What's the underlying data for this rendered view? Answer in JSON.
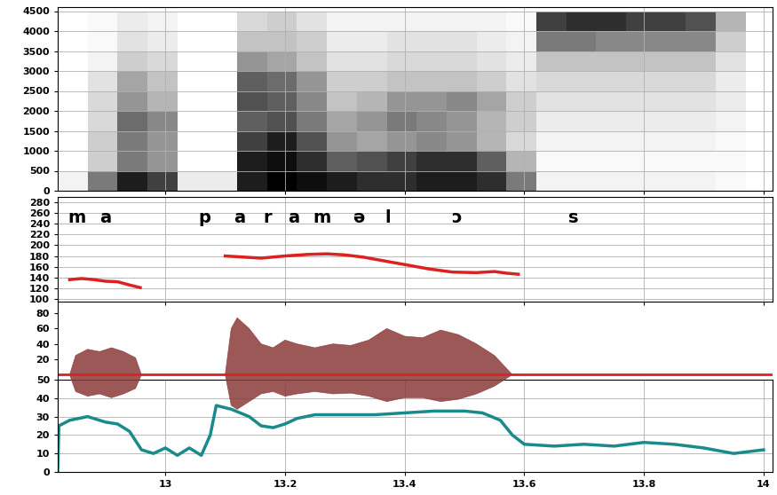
{
  "chart_data": [
    {
      "type": "heatmap",
      "time_edges": [
        12.82,
        12.87,
        12.92,
        12.97,
        13.02,
        13.07,
        13.12,
        13.17,
        13.22,
        13.27,
        13.32,
        13.37,
        13.42,
        13.47,
        13.52,
        13.57,
        13.62,
        13.67,
        13.72,
        13.77,
        13.82,
        13.87,
        13.92,
        13.97,
        14.02
      ],
      "freq_edges": [
        0,
        500,
        1000,
        1500,
        2000,
        2500,
        3000,
        3500,
        4000,
        4500
      ],
      "cells": [
        [
          0.1,
          0.6,
          0.9,
          0.8,
          0.15,
          0.15,
          0.9,
          1,
          0.95,
          0.9,
          0.85,
          0.85,
          0.9,
          0.9,
          0.85,
          0.6,
          0.1,
          0.1,
          0.1,
          0.1,
          0.1,
          0.1,
          0.05,
          0
        ],
        [
          0,
          0.3,
          0.6,
          0.5,
          0,
          0,
          0.9,
          0.95,
          0.85,
          0.7,
          0.75,
          0.8,
          0.85,
          0.85,
          0.7,
          0.4,
          0.05,
          0.05,
          0.05,
          0.05,
          0.05,
          0.05,
          0.05,
          0
        ],
        [
          0,
          0.3,
          0.6,
          0.5,
          0,
          0,
          0.8,
          0.9,
          0.75,
          0.5,
          0.45,
          0.5,
          0.55,
          0.5,
          0.4,
          0.25,
          0.1,
          0.1,
          0.1,
          0.1,
          0.1,
          0.1,
          0.05,
          0
        ],
        [
          0,
          0.25,
          0.65,
          0.55,
          0,
          0,
          0.7,
          0.75,
          0.6,
          0.45,
          0.5,
          0.6,
          0.55,
          0.5,
          0.4,
          0.3,
          0.15,
          0.15,
          0.15,
          0.15,
          0.15,
          0.15,
          0.1,
          0
        ],
        [
          0,
          0.25,
          0.5,
          0.4,
          0,
          0,
          0.75,
          0.7,
          0.55,
          0.35,
          0.4,
          0.5,
          0.5,
          0.55,
          0.45,
          0.3,
          0.2,
          0.2,
          0.2,
          0.2,
          0.2,
          0.2,
          0.15,
          0
        ],
        [
          0,
          0.2,
          0.45,
          0.35,
          0,
          0,
          0.7,
          0.65,
          0.5,
          0.3,
          0.3,
          0.35,
          0.35,
          0.35,
          0.3,
          0.2,
          0.25,
          0.25,
          0.25,
          0.25,
          0.25,
          0.25,
          0.15,
          0
        ],
        [
          0,
          0.1,
          0.3,
          0.25,
          0,
          0,
          0.5,
          0.45,
          0.35,
          0.2,
          0.2,
          0.25,
          0.25,
          0.25,
          0.2,
          0.15,
          0.35,
          0.35,
          0.35,
          0.35,
          0.35,
          0.35,
          0.2,
          0
        ],
        [
          0,
          0.05,
          0.2,
          0.15,
          0,
          0,
          0.35,
          0.35,
          0.3,
          0.15,
          0.15,
          0.2,
          0.2,
          0.2,
          0.15,
          0.1,
          0.6,
          0.6,
          0.55,
          0.55,
          0.55,
          0.55,
          0.3,
          0
        ],
        [
          0,
          0.05,
          0.15,
          0.1,
          0,
          0,
          0.25,
          0.3,
          0.2,
          0.1,
          0.1,
          0.1,
          0.1,
          0.1,
          0.1,
          0.05,
          0.8,
          0.85,
          0.85,
          0.8,
          0.8,
          0.75,
          0.4,
          0
        ]
      ],
      "cell_range": [
        0,
        1
      ],
      "xlim": [
        12.82,
        14.015
      ],
      "xticks": [
        13,
        13.2,
        13.4,
        13.6,
        13.8,
        14
      ],
      "ylim": [
        0,
        4600
      ],
      "yticks": [
        0,
        500,
        1000,
        1500,
        2000,
        2500,
        3000,
        3500,
        4000,
        4500
      ],
      "grid": true,
      "tick_labels": "y"
    },
    {
      "type": "line",
      "color": "#dd2020",
      "x": [
        12.84,
        12.86,
        12.88,
        12.9,
        12.92,
        12.94,
        12.958,
        13.03,
        13.1,
        13.13,
        13.16,
        13.2,
        13.24,
        13.27,
        13.3,
        13.33,
        13.36,
        13.4,
        13.44,
        13.48,
        13.52,
        13.55,
        13.57,
        13.59
      ],
      "values": [
        136,
        138,
        136,
        133,
        132,
        126,
        121,
        null,
        180,
        178,
        176,
        180,
        183,
        184,
        182,
        178,
        172,
        164,
        156,
        150,
        149,
        151,
        148,
        146
      ],
      "segment_labels": [
        {
          "label": "m",
          "x": 12.852
        },
        {
          "label": "a",
          "x": 12.9
        },
        {
          "label": "p",
          "x": 13.066
        },
        {
          "label": "a",
          "x": 13.124
        },
        {
          "label": "r",
          "x": 13.17
        },
        {
          "label": "a",
          "x": 13.214
        },
        {
          "label": "m",
          "x": 13.261
        },
        {
          "label": "ə",
          "x": 13.323
        },
        {
          "label": "l",
          "x": 13.372
        },
        {
          "label": "ɔ",
          "x": 13.487
        },
        {
          "label": "s",
          "x": 13.682
        }
      ],
      "xlim": [
        12.82,
        14.015
      ],
      "xticks": [
        13,
        13.2,
        13.4,
        13.6,
        13.8,
        14
      ],
      "ylim": [
        95,
        290
      ],
      "yticks": [
        100,
        120,
        140,
        160,
        180,
        200,
        220,
        240,
        260,
        280
      ],
      "grid": true,
      "tick_labels": "y"
    },
    {
      "type": "area",
      "color": "#8b3a3a",
      "baseline": 0,
      "baseline_color": "#dd2020",
      "x": [
        12.84,
        12.85,
        12.87,
        12.89,
        12.91,
        12.93,
        12.95,
        12.96,
        13.03,
        13.1,
        13.11,
        13.12,
        13.14,
        13.16,
        13.18,
        13.2,
        13.22,
        13.25,
        13.28,
        13.31,
        13.34,
        13.37,
        13.4,
        13.43,
        13.46,
        13.49,
        13.52,
        13.55,
        13.58
      ],
      "upper": [
        0,
        25,
        33,
        30,
        35,
        30,
        22,
        0,
        null,
        0,
        60,
        74,
        60,
        40,
        35,
        45,
        40,
        35,
        40,
        38,
        45,
        60,
        50,
        48,
        58,
        52,
        40,
        25,
        0
      ],
      "lower": [
        0,
        -22,
        -28,
        -25,
        -30,
        -25,
        -18,
        0,
        null,
        0,
        -40,
        -45,
        -35,
        -25,
        -22,
        -28,
        -25,
        -22,
        -25,
        -24,
        -28,
        -35,
        -30,
        -30,
        -35,
        -32,
        -25,
        -15,
        0
      ],
      "xlim": [
        12.82,
        14.015
      ],
      "xticks": [
        13,
        13.2,
        13.4,
        13.6,
        13.8,
        14
      ],
      "ylim": [
        -55,
        95
      ],
      "yticks": [
        20,
        40,
        60,
        80
      ],
      "grid": false,
      "tick_labels": "y"
    },
    {
      "type": "line",
      "color": "#1a8a8a",
      "x": [
        12.82,
        12.822,
        12.84,
        12.87,
        12.9,
        12.92,
        12.94,
        12.96,
        12.98,
        13.0,
        13.02,
        13.04,
        13.06,
        13.075,
        13.085,
        13.11,
        13.14,
        13.16,
        13.18,
        13.2,
        13.22,
        13.25,
        13.3,
        13.35,
        13.4,
        13.45,
        13.5,
        13.53,
        13.56,
        13.58,
        13.6,
        13.65,
        13.7,
        13.75,
        13.8,
        13.85,
        13.9,
        13.95,
        14.0
      ],
      "values": [
        0,
        25,
        28,
        30,
        27,
        26,
        22,
        12,
        10,
        13,
        9,
        13,
        9,
        20,
        36,
        34,
        30,
        25,
        24,
        26,
        29,
        31,
        31,
        31,
        32,
        33,
        33,
        32,
        28,
        20,
        15,
        14,
        15,
        14,
        16,
        15,
        13,
        10,
        12
      ],
      "xlim": [
        12.82,
        14.015
      ],
      "xticks": [
        13,
        13.2,
        13.4,
        13.6,
        13.8,
        14
      ],
      "ylim": [
        0,
        50
      ],
      "yticks": [
        0,
        10,
        20,
        30,
        40,
        50
      ],
      "grid": true
    }
  ]
}
